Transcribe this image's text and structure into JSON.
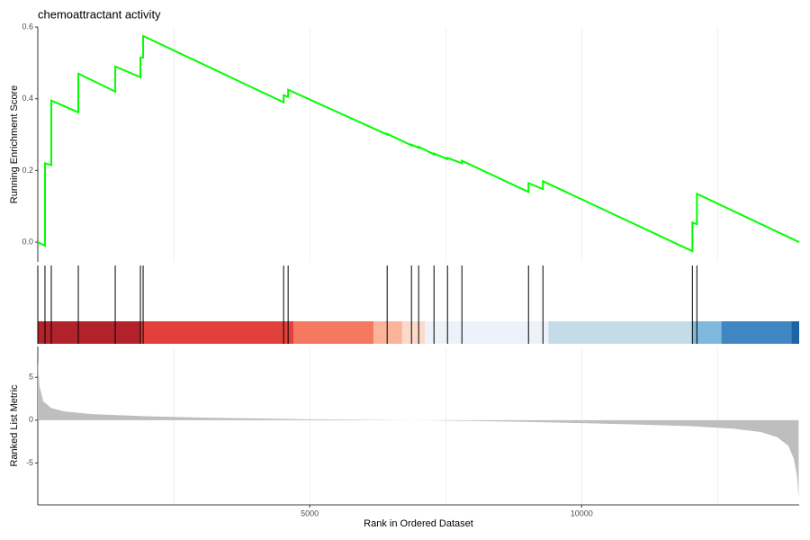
{
  "chart_data": [
    {
      "type": "line",
      "title": "chemoattractant activity",
      "y_label": "Running Enrichment Score",
      "xlim": [
        0,
        14000
      ],
      "ylim": [
        -0.055,
        0.6
      ],
      "yticks": [
        {
          "value": 0,
          "label": "0.0"
        },
        0.2,
        0.4,
        0.6
      ],
      "xgrid": [
        2500,
        5000,
        7500,
        10000,
        12500
      ],
      "series": [
        {
          "color": "#00ff00",
          "x": [
            0,
            132,
            132,
            248,
            248,
            745,
            745,
            1424,
            1424,
            1887,
            1887,
            1937,
            1937,
            4520,
            4520,
            4603,
            4603,
            6424,
            6424,
            6871,
            6871,
            7003,
            7003,
            7285,
            7285,
            7533,
            7533,
            7798,
            7798,
            9023,
            9023,
            9288,
            9288,
            12036,
            12036,
            12119,
            12119,
            14000
          ],
          "values": [
            0,
            -0.01,
            0.22,
            0.215,
            0.395,
            0.362,
            0.47,
            0.42,
            0.49,
            0.46,
            0.515,
            0.515,
            0.575,
            0.39,
            0.41,
            0.405,
            0.425,
            0.3,
            0.302,
            0.27,
            0.272,
            0.263,
            0.266,
            0.245,
            0.247,
            0.232,
            0.235,
            0.22,
            0.227,
            0.14,
            0.165,
            0.148,
            0.17,
            -0.025,
            0.055,
            0.05,
            0.135,
            0
          ]
        }
      ]
    },
    {
      "type": "rug",
      "xlim": [
        0,
        14000
      ],
      "hit_color": "#000000",
      "hits": [
        0,
        132,
        248,
        745,
        1424,
        1887,
        1937,
        4520,
        4603,
        6424,
        6871,
        7003,
        7285,
        7533,
        7798,
        9023,
        9288,
        12036,
        12119
      ],
      "bands": [
        {
          "start": 0,
          "end": 1887,
          "color": "#b2222b"
        },
        {
          "start": 1887,
          "end": 4700,
          "color": "#e2413b"
        },
        {
          "start": 4700,
          "end": 6175,
          "color": "#f4795f"
        },
        {
          "start": 6175,
          "end": 6700,
          "color": "#fbb39a"
        },
        {
          "start": 6700,
          "end": 7120,
          "color": "#fcdacb"
        },
        {
          "start": 7120,
          "end": 9390,
          "color": "#edf2fa"
        },
        {
          "start": 9390,
          "end": 12036,
          "color": "#c4dce8"
        },
        {
          "start": 12036,
          "end": 12570,
          "color": "#7fb8dc"
        },
        {
          "start": 12570,
          "end": 13860,
          "color": "#3f87c2"
        },
        {
          "start": 13860,
          "end": 14000,
          "color": "#1f62a5"
        }
      ]
    },
    {
      "type": "area",
      "x_label": "Rank in Ordered Dataset",
      "y_label": "Ranked List Metric",
      "xlim": [
        0,
        14000
      ],
      "ylim": [
        -9.9,
        8.6
      ],
      "yticks": [
        -5,
        0,
        5
      ],
      "xticks": [
        5000,
        10000
      ],
      "xgrid": [
        2500,
        5000,
        7500,
        10000,
        12500
      ],
      "color": "#bebebe",
      "x": [
        0,
        30,
        100,
        250,
        500,
        1000,
        2000,
        3000,
        4000,
        5000,
        6000,
        6900,
        8000,
        9000,
        10000,
        11000,
        12000,
        12800,
        13300,
        13600,
        13800,
        13900,
        13960,
        13990
      ],
      "values": [
        7.0,
        4,
        2.2,
        1.4,
        1.0,
        0.7,
        0.45,
        0.3,
        0.2,
        0.1,
        0.05,
        0,
        -0.1,
        -0.2,
        -0.35,
        -0.5,
        -0.7,
        -1.0,
        -1.4,
        -2.0,
        -3.0,
        -4.5,
        -6.5,
        -9.0
      ]
    }
  ]
}
